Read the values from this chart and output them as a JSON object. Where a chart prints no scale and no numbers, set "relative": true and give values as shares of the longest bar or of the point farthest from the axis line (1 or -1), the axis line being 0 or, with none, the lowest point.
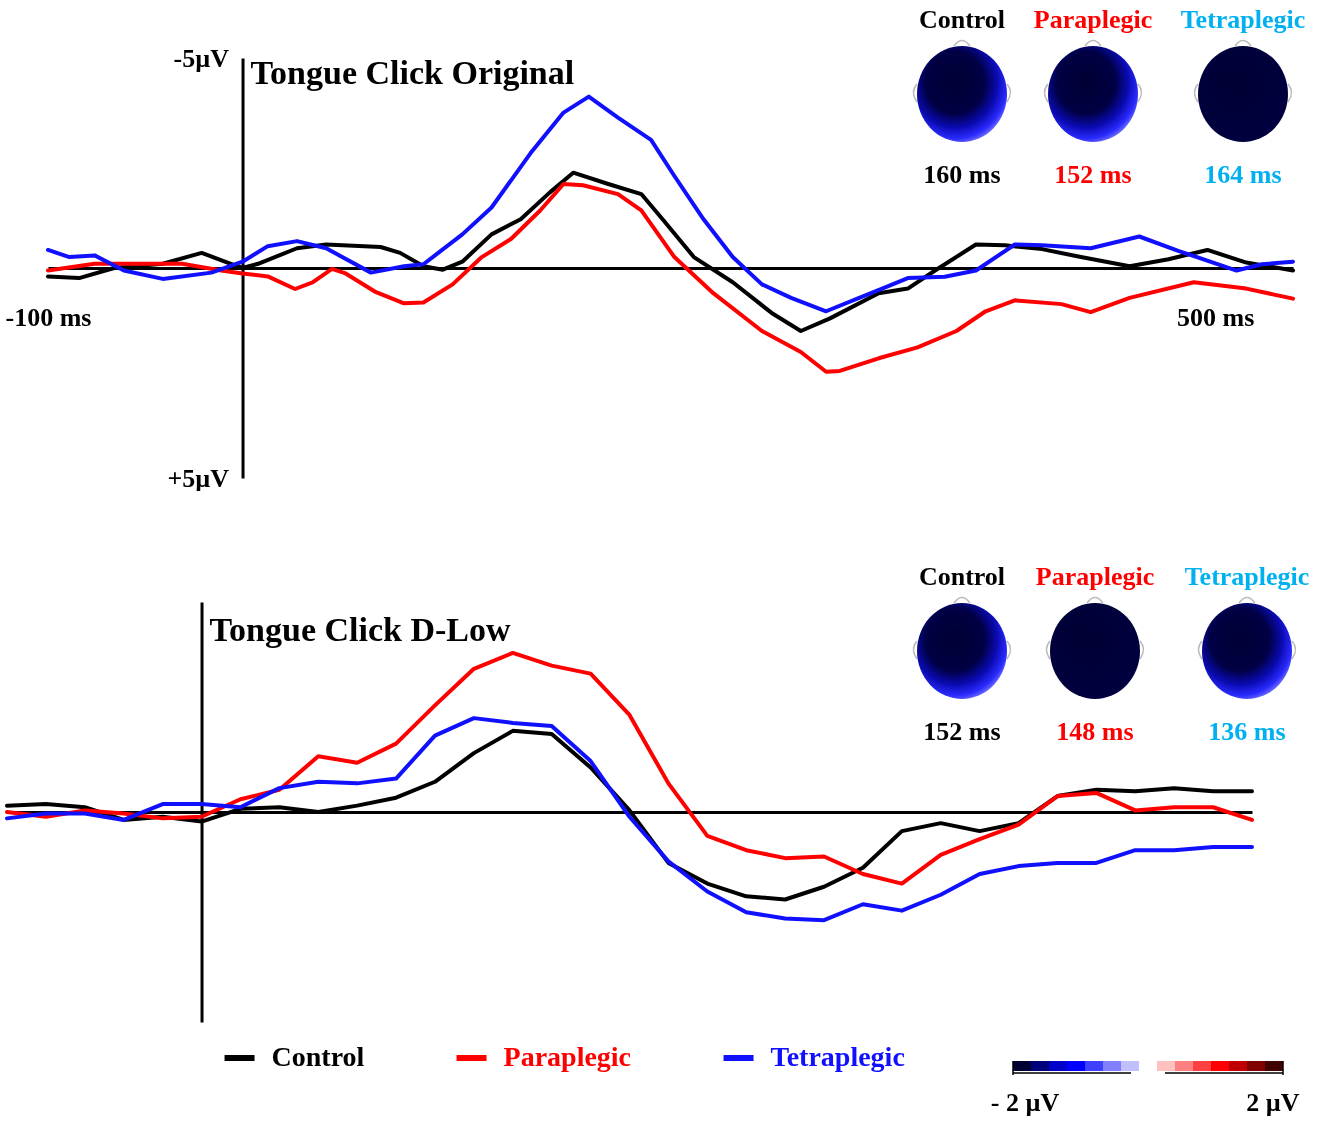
{
  "chart_data": [
    {
      "type": "line",
      "title": "Tongue Click Original",
      "xlim": [
        -100,
        540
      ],
      "ylim": [
        5,
        -5
      ],
      "xticks": [
        {
          "value": -100,
          "label": "-100 ms"
        },
        {
          "value": 500,
          "label": "500 ms"
        }
      ],
      "yticks": [
        {
          "value": -5,
          "label": "-5µV"
        },
        {
          "value": 5,
          "label": "+5µV"
        }
      ],
      "annotations": [
        "Control",
        "Paraplegic",
        "Tetraplegic",
        "160 ms",
        "152 ms",
        "164 ms"
      ],
      "series": [
        {
          "color": "#000000",
          "x": [
            -100,
            -84,
            -66,
            -41,
            -21,
            -6,
            0,
            8,
            28,
            43,
            71,
            81,
            93,
            103,
            113,
            128,
            143,
            158,
            170,
            188,
            205,
            217,
            232,
            252,
            272,
            287,
            302,
            327,
            342,
            356,
            377,
            392,
            411,
            431,
            456,
            476,
            496,
            516,
            540
          ],
          "values": [
            0.2,
            0.24,
            0,
            -0.1,
            -0.36,
            -0.1,
            0,
            -0.1,
            -0.47,
            -0.56,
            -0.5,
            -0.36,
            -0.04,
            0.04,
            -0.15,
            -0.8,
            -1.16,
            -1.8,
            -2.27,
            -2.0,
            -1.76,
            -1.1,
            -0.26,
            0.34,
            1.07,
            1.5,
            1.2,
            0.6,
            0.49,
            0.06,
            -0.56,
            -0.54,
            -0.45,
            -0.26,
            -0.04,
            -0.21,
            -0.43,
            -0.13,
            0.06
          ]
        },
        {
          "color": "#ff0000",
          "x": [
            -100,
            -76,
            -56,
            -31,
            -11,
            0,
            13,
            27,
            36,
            46,
            53,
            68,
            83,
            93,
            108,
            123,
            138,
            153,
            165,
            175,
            193,
            205,
            222,
            242,
            267,
            287,
            300,
            307,
            327,
            347,
            367,
            382,
            397,
            421,
            436,
            456,
            489,
            516,
            540
          ],
          "values": [
            0.06,
            -0.1,
            -0.1,
            -0.1,
            0.06,
            0.13,
            0.2,
            0.5,
            0.34,
            0.02,
            0.13,
            0.56,
            0.84,
            0.82,
            0.39,
            -0.26,
            -0.69,
            -1.37,
            -2.0,
            -1.97,
            -1.76,
            -1.37,
            -0.26,
            0.6,
            1.5,
            2.0,
            2.47,
            2.45,
            2.15,
            1.89,
            1.5,
            1.03,
            0.77,
            0.86,
            1.05,
            0.71,
            0.34,
            0.49,
            0.73
          ]
        },
        {
          "color": "#1010ff",
          "x": [
            -100,
            -89,
            -76,
            -61,
            -41,
            -16,
            0,
            13,
            28,
            43,
            66,
            83,
            93,
            113,
            128,
            148,
            165,
            178,
            193,
            210,
            222,
            237,
            252,
            267,
            282,
            300,
            317,
            331,
            342,
            361,
            377,
            397,
            411,
            436,
            461,
            481,
            511,
            524,
            540
          ],
          "values": [
            -0.43,
            -0.26,
            -0.3,
            0.06,
            0.26,
            0.11,
            -0.15,
            -0.52,
            -0.64,
            -0.47,
            0.11,
            -0.04,
            -0.09,
            -0.8,
            -1.44,
            -2.73,
            -3.7,
            -4.08,
            -3.58,
            -3.05,
            -2.19,
            -1.16,
            -0.26,
            0.39,
            0.71,
            1.03,
            0.71,
            0.45,
            0.24,
            0.21,
            0.06,
            -0.56,
            -0.54,
            -0.47,
            -0.75,
            -0.41,
            0.06,
            -0.09,
            -0.15
          ]
        }
      ]
    },
    {
      "type": "line",
      "title": "Tongue Click D-Low",
      "relative": true,
      "legend": "bottom",
      "categories": [
        null,
        null,
        null,
        null,
        null,
        null,
        null,
        null,
        null,
        null,
        null,
        null,
        null,
        null,
        null,
        null,
        null,
        null,
        null,
        null,
        null,
        null,
        null,
        null,
        null,
        null,
        null,
        null,
        null,
        null,
        null,
        null,
        null
      ],
      "annotations": [
        "Control",
        "Paraplegic",
        "Tetraplegic",
        "152 ms",
        "148 ms",
        "136 ms",
        "- 2 µV",
        "2 µV"
      ],
      "series": [
        {
          "name": "Control",
          "color": "#000000",
          "values": [
            0.04,
            0.05,
            0.03,
            -0.05,
            -0.03,
            -0.06,
            0.02,
            0.03,
            0,
            0.04,
            0.09,
            0.19,
            0.37,
            0.51,
            0.49,
            0.28,
            0.01,
            -0.32,
            -0.45,
            -0.53,
            -0.55,
            -0.47,
            -0.35,
            -0.12,
            -0.07,
            -0.12,
            -0.07,
            0.1,
            0.14,
            0.13,
            0.15,
            0.13,
            0.13
          ]
        },
        {
          "name": "Paraplegic",
          "color": "#ff0000",
          "values": [
            0,
            -0.03,
            0.01,
            -0.01,
            -0.04,
            -0.03,
            0.08,
            0.14,
            0.35,
            0.31,
            0.43,
            0.67,
            0.9,
            1,
            0.92,
            0.87,
            0.61,
            0.18,
            -0.15,
            -0.24,
            -0.29,
            -0.28,
            -0.39,
            -0.45,
            -0.27,
            -0.17,
            -0.08,
            0.1,
            0.12,
            0.01,
            0.03,
            0.03,
            -0.05
          ]
        },
        {
          "name": "Tetraplegic",
          "color": "#1010ff",
          "values": [
            -0.04,
            -0.01,
            -0.01,
            -0.05,
            0.05,
            0.05,
            0.03,
            0.15,
            0.19,
            0.18,
            0.21,
            0.48,
            0.59,
            0.56,
            0.54,
            0.32,
            -0.03,
            -0.31,
            -0.5,
            -0.63,
            -0.67,
            -0.68,
            -0.58,
            -0.62,
            -0.52,
            -0.39,
            -0.34,
            -0.32,
            -0.32,
            -0.24,
            -0.24,
            -0.22,
            -0.22
          ]
        }
      ]
    }
  ]
}
